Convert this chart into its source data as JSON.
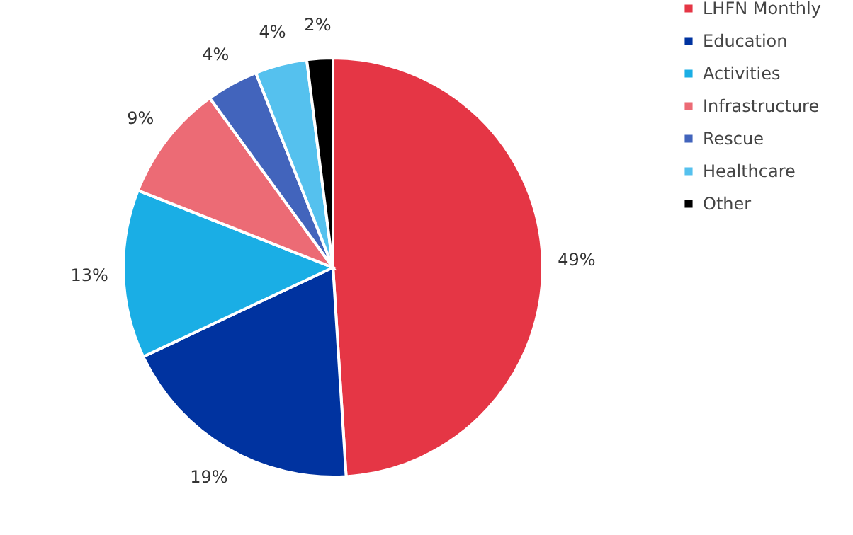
{
  "chart_data": {
    "type": "pie",
    "categories": [
      "LHFN Monthly",
      "Education",
      "Activities",
      "Infrastructure",
      "Rescue",
      "Healthcare",
      "Other"
    ],
    "values": [
      49,
      19,
      13,
      9,
      4,
      4,
      2
    ],
    "colors": [
      "#e53645",
      "#0033a0",
      "#1aaee5",
      "#ec6b75",
      "#4264bc",
      "#55c1ee",
      "#000000"
    ],
    "value_labels": [
      "49%",
      "19%",
      "13%",
      "9%",
      "4%",
      "4%",
      "2%"
    ],
    "legend": "right"
  }
}
